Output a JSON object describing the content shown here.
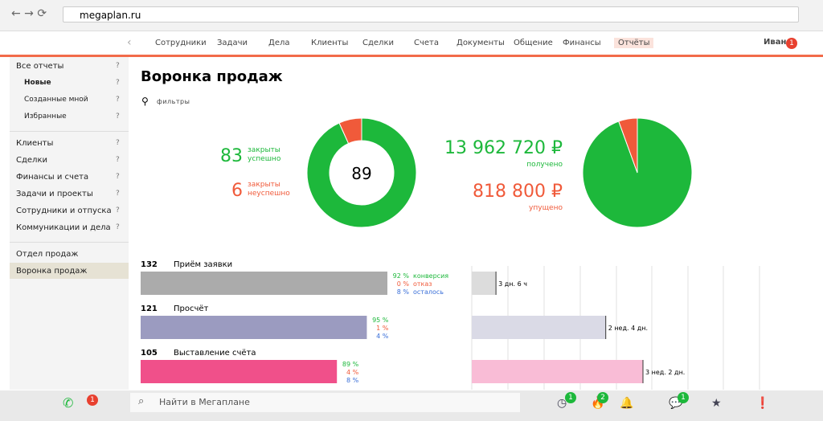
{
  "browser": {
    "url": "megaplan.ru"
  },
  "nav": {
    "items": [
      "Сотрудники",
      "Задачи",
      "Дела",
      "Клиенты",
      "Сделки",
      "Счета",
      "Документы",
      "Общение",
      "Финансы",
      "Отчёты"
    ],
    "active": 9,
    "user": "Иван",
    "user_badge": 1
  },
  "sidebar": {
    "help": "?",
    "groups": [
      [
        "Все отчеты",
        "Новые",
        "Созданные мной",
        "Избранные"
      ],
      [
        "Клиенты",
        "Сделки",
        "Финансы и счета",
        "Задачи и проекты",
        "Сотрудники и отпуска",
        "Коммуникации и дела"
      ],
      [
        "Отдел продаж",
        "Воронка продаж"
      ]
    ],
    "active": [
      2,
      1
    ]
  },
  "main": {
    "title": "Воронка продаж",
    "filters": "фильтры",
    "deals": {
      "total": 89,
      "segments": [
        {
          "value": 83,
          "label": "закрыты успешно",
          "color": "#1db83b"
        },
        {
          "value": 6,
          "label": "закрыты неуспешно",
          "color": "#f05a3a"
        }
      ]
    },
    "money": {
      "segments": [
        {
          "value": 13962720,
          "label": "13 962 720 ₽",
          "caption": "получено",
          "color": "#1db83b"
        },
        {
          "value": 818800,
          "label": "818 800 ₽",
          "caption": "упущено",
          "color": "#f05a3a"
        }
      ]
    },
    "funnel": {
      "legend": [
        "конверсия",
        "отказ",
        "осталось"
      ],
      "stages": [
        {
          "count": 132,
          "name": "Приём заявки",
          "color": "#ababab",
          "rates": {
            "values": [
              92,
              0,
              8
            ],
            "value_labels": [
              "92 %",
              "0 %",
              "8 %"
            ]
          },
          "duration": {
            "value": 78,
            "label": "3 дн. 6 ч"
          },
          "duration_color": "#dcdcdc"
        },
        {
          "count": 121,
          "name": "Просчёт",
          "color": "#9b9bc0",
          "rates": {
            "values": [
              95,
              1,
              4
            ],
            "value_labels": [
              "95 %",
              "1 %",
              "4 %"
            ]
          },
          "duration": {
            "value": 432,
            "label": "2 нед. 4 дн."
          },
          "duration_color": "#dadae6"
        },
        {
          "count": 105,
          "name": "Выставление счёта",
          "color": "#f0508a",
          "rates": {
            "values": [
              89,
              4,
              8
            ],
            "value_labels": [
              "89 %",
              "4 %",
              "8 %"
            ]
          },
          "duration": {
            "value": 552,
            "label": "3 нед. 2 дн."
          },
          "duration_color": "#f9bcd6"
        }
      ]
    }
  },
  "bottom": {
    "search": "Найти в Мегаплане",
    "badges": [
      1,
      1,
      2,
      1
    ]
  }
}
